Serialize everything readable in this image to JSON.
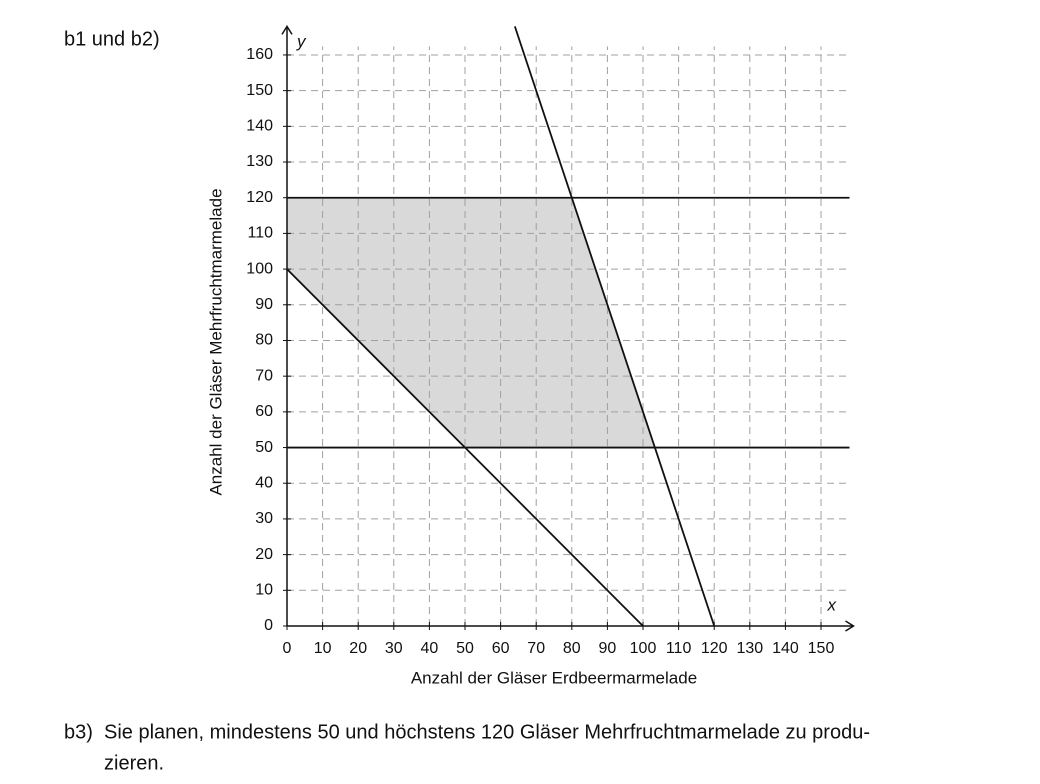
{
  "heading": "b1 und b2)",
  "task": {
    "label": "b3)",
    "lines": [
      "Sie planen, mindestens 50 und höchstens 120 Gläser Mehrfruchtmarmelade zu produ-",
      "zieren."
    ]
  },
  "chart_data": {
    "type": "line",
    "xlabel": "Anzahl der Gläser Erdbeermarmelade",
    "ylabel": "Anzahl der Gläser Mehrfruchtmarmelade",
    "x_axis_letter": "x",
    "y_axis_letter": "y",
    "xlim": [
      0,
      158
    ],
    "ylim": [
      0,
      168
    ],
    "xticks": [
      0,
      10,
      20,
      30,
      40,
      50,
      60,
      70,
      80,
      90,
      100,
      110,
      120,
      130,
      140,
      150
    ],
    "yticks": [
      0,
      10,
      20,
      30,
      40,
      50,
      60,
      70,
      80,
      90,
      100,
      110,
      120,
      130,
      140,
      150,
      160
    ],
    "grid": true,
    "grid_color": "#a0a0a0",
    "region": {
      "color": "#d9d9d9",
      "x": [
        0,
        80,
        103.33,
        50,
        0
      ],
      "values": [
        120,
        120,
        50,
        50,
        100
      ]
    },
    "series": [
      {
        "color": "#111111",
        "x": [
          0,
          100
        ],
        "values": [
          100,
          0
        ]
      },
      {
        "color": "#111111",
        "x": [
          0,
          158
        ],
        "values": [
          120,
          120
        ]
      },
      {
        "color": "#111111",
        "x": [
          0,
          158
        ],
        "values": [
          50,
          50
        ]
      },
      {
        "color": "#111111",
        "x": [
          64,
          120
        ],
        "values": [
          168,
          0
        ]
      }
    ]
  }
}
